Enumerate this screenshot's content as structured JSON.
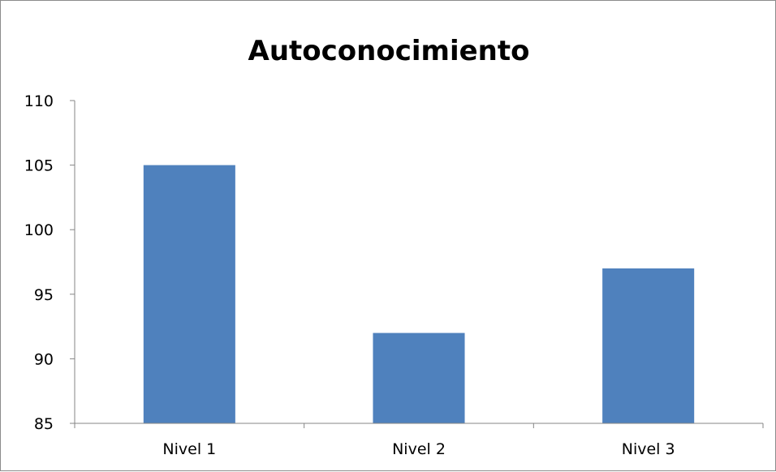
{
  "chart_data": {
    "type": "bar",
    "title": "Autoconocimiento",
    "xlabel": "",
    "ylabel": "",
    "categories": [
      "Nivel 1",
      "Nivel 2",
      "Nivel 3"
    ],
    "values": [
      105,
      92,
      97
    ],
    "ylim": [
      85,
      110
    ],
    "yticks": [
      "85",
      "90",
      "95",
      "100",
      "105",
      "110"
    ],
    "grid": false,
    "legend": "none",
    "bar_color": "#4f81bd"
  }
}
